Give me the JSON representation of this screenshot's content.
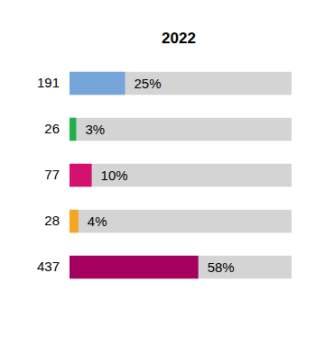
{
  "chart_data": {
    "type": "bar",
    "orientation": "horizontal",
    "title": "2022",
    "categories": [
      "191",
      "26",
      "77",
      "28",
      "437"
    ],
    "values": [
      25,
      3,
      10,
      4,
      58
    ],
    "value_labels": [
      "25%",
      "3%",
      "10%",
      "4%",
      "58%"
    ],
    "colors": [
      "#75a5d9",
      "#1fb04a",
      "#d4116e",
      "#f5a623",
      "#a3005f"
    ],
    "xlim": [
      0,
      100
    ],
    "data_labels": true,
    "tick_labels": "y",
    "grid": false
  }
}
